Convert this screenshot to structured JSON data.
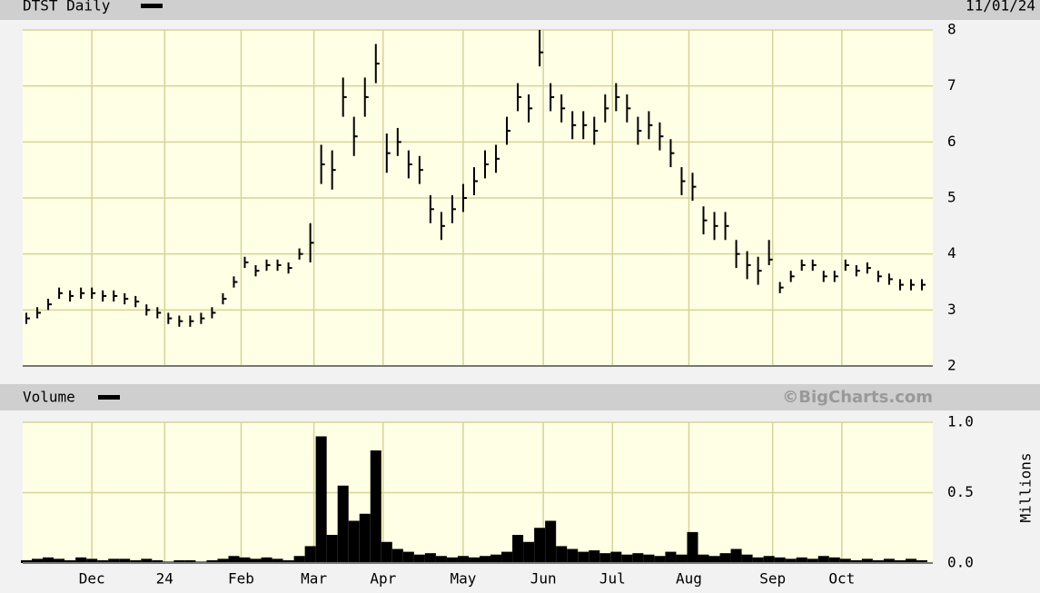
{
  "chart_data": [
    {
      "type": "ohlc",
      "title": "DTST Daily",
      "date": "11/01/24",
      "x": [
        1,
        4,
        7,
        10,
        13,
        16,
        19,
        22,
        25,
        28,
        31,
        34,
        37,
        40,
        43,
        46,
        49,
        52,
        55,
        58,
        61,
        64,
        67,
        70,
        73,
        76,
        79,
        82,
        85,
        88,
        91,
        94,
        97,
        100,
        103,
        106,
        109,
        112,
        115,
        118,
        121,
        124,
        127,
        130,
        133,
        136,
        139,
        142,
        145,
        148,
        151,
        154,
        157,
        160,
        163,
        166,
        169,
        172,
        175,
        178,
        181,
        184,
        187,
        190,
        193,
        196,
        199,
        202,
        205,
        208,
        211,
        214,
        217,
        220,
        223,
        226,
        229,
        232,
        235,
        238,
        241,
        244,
        247
      ],
      "high": [
        2.95,
        3.05,
        3.2,
        3.4,
        3.35,
        3.4,
        3.4,
        3.35,
        3.35,
        3.3,
        3.25,
        3.1,
        3.05,
        2.95,
        2.9,
        2.9,
        2.95,
        3.05,
        3.3,
        3.6,
        3.95,
        3.8,
        3.9,
        3.9,
        3.85,
        4.1,
        4.55,
        5.95,
        5.85,
        7.15,
        6.45,
        7.15,
        7.75,
        6.15,
        6.25,
        5.85,
        5.75,
        5.05,
        4.75,
        5.05,
        5.25,
        5.55,
        5.85,
        5.95,
        6.45,
        7.05,
        6.85,
        8.0,
        7.05,
        6.85,
        6.55,
        6.55,
        6.45,
        6.85,
        7.05,
        6.85,
        6.45,
        6.55,
        6.35,
        6.05,
        5.55,
        5.45,
        4.85,
        4.75,
        4.75,
        4.25,
        4.05,
        3.95,
        4.25,
        3.5,
        3.7,
        3.9,
        3.9,
        3.7,
        3.7,
        3.9,
        3.8,
        3.85,
        3.7,
        3.65,
        3.55,
        3.55,
        3.55
      ],
      "low": [
        2.75,
        2.85,
        3.0,
        3.2,
        3.15,
        3.2,
        3.2,
        3.15,
        3.15,
        3.1,
        3.05,
        2.9,
        2.85,
        2.75,
        2.7,
        2.7,
        2.75,
        2.85,
        3.1,
        3.4,
        3.75,
        3.6,
        3.7,
        3.7,
        3.65,
        3.9,
        3.85,
        5.25,
        5.15,
        6.45,
        5.75,
        6.45,
        7.05,
        5.45,
        5.75,
        5.35,
        5.25,
        4.55,
        4.25,
        4.55,
        4.75,
        5.05,
        5.35,
        5.45,
        5.95,
        6.55,
        6.35,
        7.35,
        6.55,
        6.35,
        6.05,
        6.05,
        5.95,
        6.35,
        6.55,
        6.35,
        5.95,
        6.05,
        5.85,
        5.55,
        5.05,
        4.95,
        4.35,
        4.25,
        4.25,
        3.75,
        3.55,
        3.45,
        3.8,
        3.3,
        3.5,
        3.7,
        3.7,
        3.5,
        3.5,
        3.7,
        3.6,
        3.65,
        3.5,
        3.45,
        3.35,
        3.35,
        3.35
      ],
      "close": [
        2.85,
        2.95,
        3.1,
        3.3,
        3.25,
        3.3,
        3.3,
        3.25,
        3.25,
        3.2,
        3.15,
        3.0,
        2.95,
        2.85,
        2.8,
        2.8,
        2.85,
        2.95,
        3.2,
        3.5,
        3.85,
        3.7,
        3.8,
        3.8,
        3.75,
        4.0,
        4.2,
        5.6,
        5.5,
        6.8,
        6.1,
        6.8,
        7.4,
        5.8,
        6.0,
        5.6,
        5.5,
        4.8,
        4.5,
        4.8,
        5.0,
        5.3,
        5.6,
        5.7,
        6.2,
        6.8,
        6.6,
        7.6,
        6.8,
        6.6,
        6.3,
        6.3,
        6.2,
        6.6,
        6.8,
        6.6,
        6.2,
        6.3,
        6.1,
        5.8,
        5.3,
        5.2,
        4.6,
        4.5,
        4.5,
        4.0,
        3.8,
        3.7,
        3.9,
        3.4,
        3.6,
        3.8,
        3.8,
        3.6,
        3.6,
        3.8,
        3.7,
        3.75,
        3.6,
        3.55,
        3.45,
        3.45,
        3.45
      ],
      "color": "#000000",
      "xlim": [
        0,
        250
      ],
      "ylim": [
        2,
        8
      ],
      "yticks": [
        2,
        3,
        4,
        5,
        6,
        7,
        8
      ],
      "grid": true
    },
    {
      "type": "bar",
      "title": "Volume",
      "credit": "©BigCharts.com",
      "y_label": "Millions",
      "values": [
        0.02,
        0.03,
        0.04,
        0.03,
        0.02,
        0.04,
        0.03,
        0.02,
        0.03,
        0.03,
        0.02,
        0.03,
        0.02,
        0.01,
        0.02,
        0.02,
        0.01,
        0.02,
        0.03,
        0.05,
        0.04,
        0.03,
        0.04,
        0.03,
        0.02,
        0.05,
        0.12,
        0.9,
        0.2,
        0.55,
        0.3,
        0.35,
        0.8,
        0.15,
        0.1,
        0.08,
        0.06,
        0.07,
        0.05,
        0.04,
        0.05,
        0.04,
        0.05,
        0.06,
        0.08,
        0.2,
        0.15,
        0.25,
        0.3,
        0.12,
        0.1,
        0.08,
        0.09,
        0.07,
        0.08,
        0.06,
        0.07,
        0.06,
        0.05,
        0.08,
        0.06,
        0.22,
        0.06,
        0.05,
        0.07,
        0.1,
        0.06,
        0.04,
        0.05,
        0.04,
        0.03,
        0.04,
        0.03,
        0.05,
        0.04,
        0.03,
        0.02,
        0.03,
        0.02,
        0.03,
        0.02,
        0.03,
        0.02
      ],
      "color": "#000000",
      "ylim": [
        0,
        1
      ],
      "yticks": [
        {
          "value": 0,
          "label": "0.0"
        },
        0.5,
        {
          "value": 1,
          "label": "1.0"
        }
      ],
      "xticks": [
        {
          "value": 19,
          "label": "Dec"
        },
        {
          "value": 39,
          "label": "24"
        },
        {
          "value": 60,
          "label": "Feb"
        },
        {
          "value": 80,
          "label": "Mar"
        },
        {
          "value": 99,
          "label": "Apr"
        },
        {
          "value": 121,
          "label": "May"
        },
        {
          "value": 143,
          "label": "Jun"
        },
        {
          "value": 162,
          "label": "Jul"
        },
        {
          "value": 183,
          "label": "Aug"
        },
        {
          "value": 206,
          "label": "Sep"
        },
        {
          "value": 225,
          "label": "Oct"
        }
      ],
      "grid": true
    }
  ]
}
